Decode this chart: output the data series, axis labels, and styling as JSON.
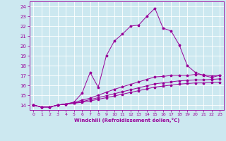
{
  "xlabel": "Windchill (Refroidissement éolien,°C)",
  "background_color": "#cce8f0",
  "line_color": "#990099",
  "xlim": [
    -0.5,
    23.5
  ],
  "ylim": [
    13.5,
    24.5
  ],
  "xticks": [
    0,
    1,
    2,
    3,
    4,
    5,
    6,
    7,
    8,
    9,
    10,
    11,
    12,
    13,
    14,
    15,
    16,
    17,
    18,
    19,
    20,
    21,
    22,
    23
  ],
  "yticks": [
    14,
    15,
    16,
    17,
    18,
    19,
    20,
    21,
    22,
    23,
    24
  ],
  "line1_x": [
    0,
    1,
    2,
    3,
    4,
    5,
    6,
    7,
    8,
    9,
    10,
    11,
    12,
    13,
    14,
    15,
    16,
    17,
    18,
    19,
    20,
    21,
    22,
    23
  ],
  "line1_y": [
    14.0,
    13.8,
    13.8,
    14.0,
    14.1,
    14.3,
    15.2,
    17.3,
    15.8,
    19.0,
    20.5,
    21.2,
    22.0,
    22.1,
    23.0,
    23.8,
    21.8,
    21.5,
    20.1,
    18.0,
    17.3,
    17.0,
    16.8,
    17.0
  ],
  "line2_x": [
    0,
    1,
    2,
    3,
    4,
    5,
    6,
    7,
    8,
    9,
    10,
    11,
    12,
    13,
    14,
    15,
    16,
    17,
    18,
    19,
    20,
    21,
    22,
    23
  ],
  "line2_y": [
    14.0,
    13.8,
    13.8,
    14.0,
    14.1,
    14.25,
    14.5,
    14.7,
    15.0,
    15.3,
    15.6,
    15.85,
    16.1,
    16.35,
    16.6,
    16.85,
    16.9,
    17.0,
    17.0,
    17.0,
    17.1,
    17.05,
    16.95,
    17.0
  ],
  "line3_x": [
    0,
    1,
    2,
    3,
    4,
    5,
    6,
    7,
    8,
    9,
    10,
    11,
    12,
    13,
    14,
    15,
    16,
    17,
    18,
    19,
    20,
    21,
    22,
    23
  ],
  "line3_y": [
    14.0,
    13.8,
    13.8,
    14.0,
    14.1,
    14.2,
    14.35,
    14.55,
    14.75,
    14.95,
    15.15,
    15.35,
    15.55,
    15.75,
    15.95,
    16.15,
    16.25,
    16.35,
    16.45,
    16.5,
    16.55,
    16.55,
    16.6,
    16.65
  ],
  "line4_x": [
    0,
    1,
    2,
    3,
    4,
    5,
    6,
    7,
    8,
    9,
    10,
    11,
    12,
    13,
    14,
    15,
    16,
    17,
    18,
    19,
    20,
    21,
    22,
    23
  ],
  "line4_y": [
    14.0,
    13.8,
    13.8,
    14.0,
    14.1,
    14.18,
    14.28,
    14.42,
    14.58,
    14.75,
    14.92,
    15.1,
    15.28,
    15.46,
    15.64,
    15.82,
    15.92,
    16.02,
    16.12,
    16.18,
    16.24,
    16.24,
    16.3,
    16.32
  ]
}
